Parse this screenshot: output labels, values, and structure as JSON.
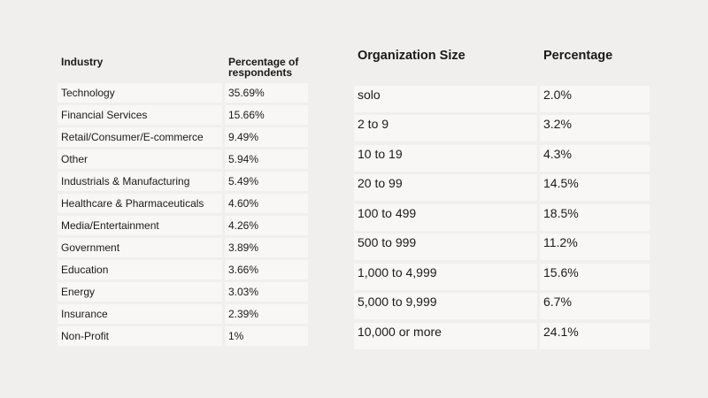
{
  "chart_data": [
    {
      "type": "table",
      "columns": [
        "Industry",
        "Percentage of respondents"
      ],
      "rows": [
        [
          "Technology",
          "35.69%"
        ],
        [
          "Financial Services",
          "15.66%"
        ],
        [
          "Retail/Consumer/E-commerce",
          "9.49%"
        ],
        [
          "Other",
          "5.94%"
        ],
        [
          "Industrials & Manufacturing",
          "5.49%"
        ],
        [
          "Healthcare & Pharmaceuticals",
          "4.60%"
        ],
        [
          "Media/Entertainment",
          "4.26%"
        ],
        [
          "Government",
          "3.89%"
        ],
        [
          "Education",
          "3.66%"
        ],
        [
          "Energy",
          "3.03%"
        ],
        [
          "Insurance",
          "2.39%"
        ],
        [
          "Non-Profit",
          "1%"
        ]
      ]
    },
    {
      "type": "table",
      "columns": [
        "Organization Size",
        "Percentage"
      ],
      "rows": [
        [
          "solo",
          "2.0%"
        ],
        [
          "2 to 9",
          "3.2%"
        ],
        [
          "10 to 19",
          "4.3%"
        ],
        [
          "20 to 99",
          "14.5%"
        ],
        [
          "100 to 499",
          "18.5%"
        ],
        [
          "500 to 999",
          "11.2%"
        ],
        [
          "1,000 to 4,999",
          "15.6%"
        ],
        [
          "5,000 to 9,999",
          "6.7%"
        ],
        [
          "10,000 or more",
          "24.1%"
        ]
      ]
    }
  ]
}
